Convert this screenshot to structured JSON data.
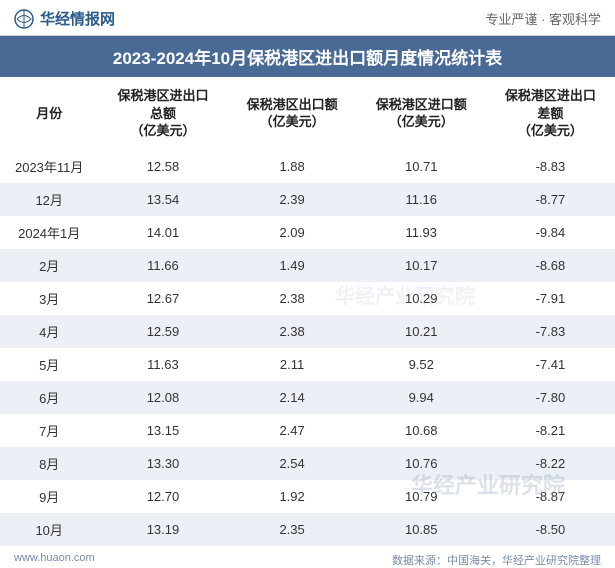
{
  "header": {
    "logo_text": "华经情报网",
    "tagline": "专业严谨 · 客观科学"
  },
  "title": "2023-2024年10月保税港区进出口额月度情况统计表",
  "table": {
    "columns": [
      "月份",
      "保税港区进出口\n总额\n（亿美元）",
      "保税港区出口额\n（亿美元）",
      "保税港区进口额\n（亿美元）",
      "保税港区进出口\n差额\n（亿美元）"
    ],
    "rows": [
      [
        "2023年11月",
        "12.58",
        "1.88",
        "10.71",
        "-8.83"
      ],
      [
        "12月",
        "13.54",
        "2.39",
        "11.16",
        "-8.77"
      ],
      [
        "2024年1月",
        "14.01",
        "2.09",
        "11.93",
        "-9.84"
      ],
      [
        "2月",
        "11.66",
        "1.49",
        "10.17",
        "-8.68"
      ],
      [
        "3月",
        "12.67",
        "2.38",
        "10.29",
        "-7.91"
      ],
      [
        "4月",
        "12.59",
        "2.38",
        "10.21",
        "-7.83"
      ],
      [
        "5月",
        "11.63",
        "2.11",
        "9.52",
        "-7.41"
      ],
      [
        "6月",
        "12.08",
        "2.14",
        "9.94",
        "-7.80"
      ],
      [
        "7月",
        "13.15",
        "2.47",
        "10.68",
        "-8.21"
      ],
      [
        "8月",
        "13.30",
        "2.54",
        "10.76",
        "-8.22"
      ],
      [
        "9月",
        "12.70",
        "1.92",
        "10.79",
        "-8.87"
      ],
      [
        "10月",
        "13.19",
        "2.35",
        "10.85",
        "-8.50"
      ]
    ]
  },
  "footer": {
    "left": "www.huaon.com",
    "right": "数据来源：中国海关，华经产业研究院整理"
  },
  "watermark": "华经产业研究院",
  "colors": {
    "title_bg": "#4a6a96",
    "title_fg": "#ffffff",
    "row_even_bg": "#ecf0f6",
    "row_odd_bg": "#ffffff",
    "header_text": "#2b5a8c",
    "footer_text": "#7a8aa5"
  }
}
